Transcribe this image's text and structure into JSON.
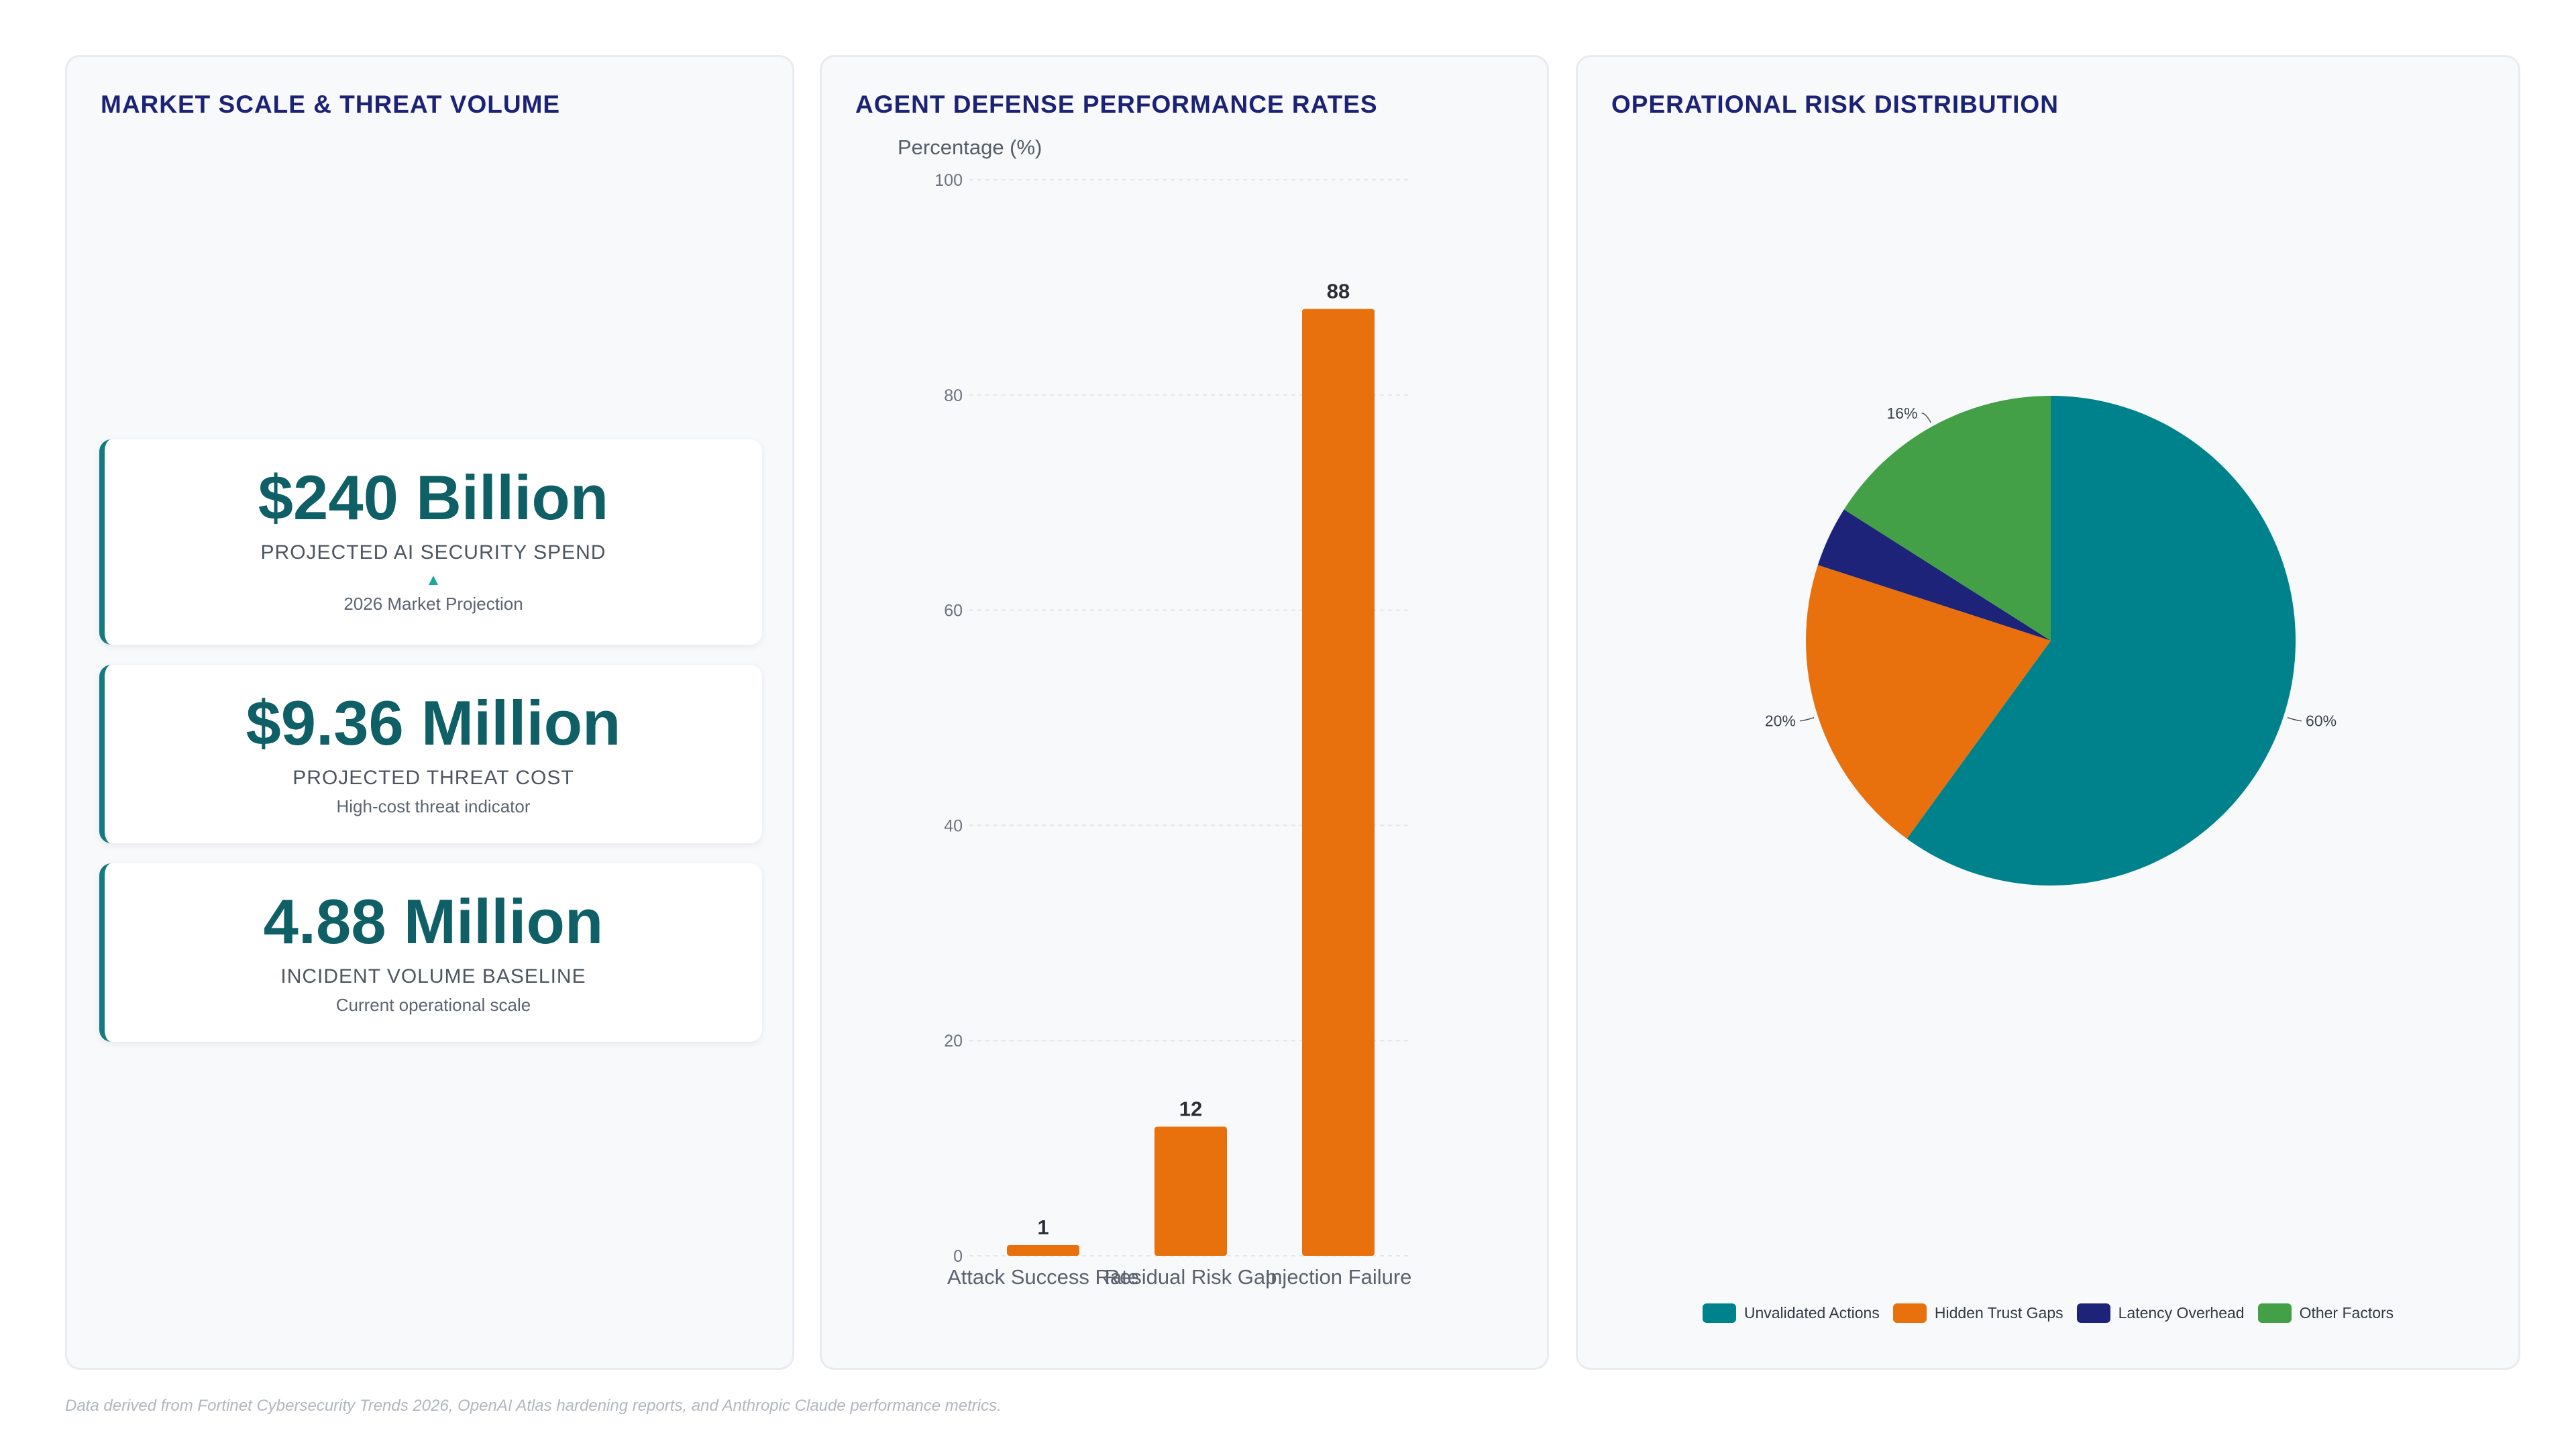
{
  "panels": {
    "market": {
      "title": "MARKET SCALE & THREAT VOLUME",
      "cards": [
        {
          "value": "$240 Billion",
          "label": "PROJECTED AI SECURITY SPEND",
          "indicator": "▲",
          "sub": "2026 Market Projection"
        },
        {
          "value": "$9.36 Million",
          "label": "PROJECTED THREAT COST",
          "sub": "High-cost threat indicator"
        },
        {
          "value": "4.88 Million",
          "label": "INCIDENT VOLUME BASELINE",
          "sub": "Current operational scale"
        }
      ]
    },
    "defense": {
      "title": "AGENT DEFENSE PERFORMANCE RATES"
    },
    "risk": {
      "title": "OPERATIONAL RISK DISTRIBUTION"
    }
  },
  "footnote": "Data derived from Fortinet Cybersecurity Trends 2026, OpenAI Atlas hardening reports, and Anthropic Claude performance metrics.",
  "colors": {
    "accent": "#127a80",
    "bar": "#e8700d",
    "teal": "#00828c",
    "orange": "#e8700d",
    "navy": "#1e237a",
    "green": "#43a047"
  },
  "chart_data": [
    {
      "type": "bar",
      "title": "AGENT DEFENSE PERFORMANCE RATES",
      "ylabel": "Percentage (%)",
      "xlabel": "",
      "categories": [
        "Attack Success Rate",
        "Residual Risk Gap",
        "Injection Failure"
      ],
      "values": [
        1,
        12,
        88
      ],
      "ylim": [
        0,
        100
      ],
      "yticks": [
        0,
        20,
        40,
        60,
        80,
        100
      ],
      "grid": true,
      "data_labels": true
    },
    {
      "type": "pie",
      "title": "OPERATIONAL RISK DISTRIBUTION",
      "categories": [
        "Unvalidated Actions",
        "Hidden Trust Gaps",
        "Latency Overhead",
        "Other Factors"
      ],
      "values": [
        60,
        20,
        4,
        16
      ],
      "labels": [
        "60%",
        "20%",
        "",
        "16%"
      ],
      "colors": [
        "#00828c",
        "#e8700d",
        "#1e237a",
        "#43a047"
      ],
      "legend": "bottom"
    }
  ]
}
